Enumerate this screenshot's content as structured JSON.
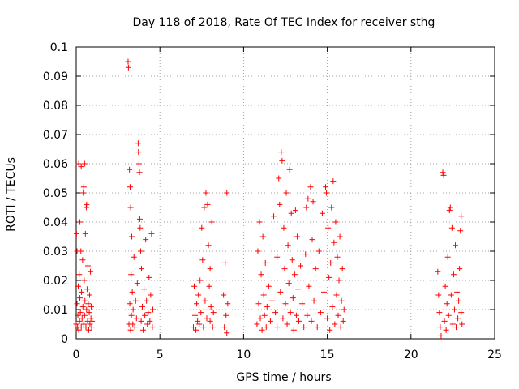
{
  "chart_data": {
    "type": "scatter",
    "title": "Day 118 of 2018, Rate Of TEC Index for receiver sthg",
    "xlabel": "GPS time / hours",
    "ylabel": "ROTI / TECUs",
    "xlim": [
      0,
      25
    ],
    "ylim": [
      0,
      0.1
    ],
    "grid": true,
    "marker": "+",
    "series_color": "#ff0000",
    "x_ticks": [
      0,
      5,
      10,
      15,
      20,
      25
    ],
    "y_ticks": [
      0,
      0.01,
      0.02,
      0.03,
      0.04,
      0.05,
      0.06,
      0.07,
      0.08,
      0.09,
      0.1
    ],
    "x_tick_labels": [
      "0",
      "5",
      "10",
      "15",
      "20",
      "25"
    ],
    "y_tick_labels": [
      "0",
      "0.01",
      "0.02",
      "0.03",
      "0.04",
      "0.05",
      "0.06",
      "0.07",
      "0.08",
      "0.09",
      "0.1"
    ],
    "series": [
      {
        "name": "ROTI",
        "points": [
          [
            0.0,
            0.005
          ],
          [
            0.02,
            0.036
          ],
          [
            0.05,
            0.03
          ],
          [
            0.05,
            0.012
          ],
          [
            0.08,
            0.004
          ],
          [
            0.1,
            0.008
          ],
          [
            0.12,
            0.018
          ],
          [
            0.15,
            0.06
          ],
          [
            0.15,
            0.003
          ],
          [
            0.18,
            0.022
          ],
          [
            0.2,
            0.006
          ],
          [
            0.22,
            0.04
          ],
          [
            0.22,
            0.014
          ],
          [
            0.25,
            0.009
          ],
          [
            0.28,
            0.03
          ],
          [
            0.3,
            0.059
          ],
          [
            0.3,
            0.004
          ],
          [
            0.32,
            0.016
          ],
          [
            0.35,
            0.007
          ],
          [
            0.38,
            0.027
          ],
          [
            0.4,
            0.011
          ],
          [
            0.42,
            0.05
          ],
          [
            0.45,
            0.052
          ],
          [
            0.45,
            0.005
          ],
          [
            0.48,
            0.02
          ],
          [
            0.5,
            0.06
          ],
          [
            0.5,
            0.008
          ],
          [
            0.52,
            0.013
          ],
          [
            0.55,
            0.036
          ],
          [
            0.58,
            0.004
          ],
          [
            0.6,
            0.045
          ],
          [
            0.62,
            0.046
          ],
          [
            0.62,
            0.01
          ],
          [
            0.65,
            0.017
          ],
          [
            0.68,
            0.006
          ],
          [
            0.7,
            0.025
          ],
          [
            0.72,
            0.012
          ],
          [
            0.75,
            0.003
          ],
          [
            0.78,
            0.009
          ],
          [
            0.8,
            0.015
          ],
          [
            0.82,
            0.005
          ],
          [
            0.85,
            0.023
          ],
          [
            0.88,
            0.007
          ],
          [
            0.9,
            0.011
          ],
          [
            0.92,
            0.004
          ],
          [
            0.95,
            0.006
          ],
          [
            3.1,
            0.095
          ],
          [
            3.12,
            0.093
          ],
          [
            3.15,
            0.005
          ],
          [
            3.18,
            0.058
          ],
          [
            3.2,
            0.012
          ],
          [
            3.22,
            0.052
          ],
          [
            3.25,
            0.045
          ],
          [
            3.25,
            0.003
          ],
          [
            3.28,
            0.022
          ],
          [
            3.3,
            0.008
          ],
          [
            3.32,
            0.035
          ],
          [
            3.35,
            0.016
          ],
          [
            3.38,
            0.005
          ],
          [
            3.4,
            0.01
          ],
          [
            3.45,
            0.028
          ],
          [
            3.5,
            0.004
          ],
          [
            3.55,
            0.013
          ],
          [
            3.6,
            0.007
          ],
          [
            3.65,
            0.019
          ],
          [
            3.7,
            0.067
          ],
          [
            3.72,
            0.064
          ],
          [
            3.75,
            0.06
          ],
          [
            3.78,
            0.057
          ],
          [
            3.8,
            0.041
          ],
          [
            3.82,
            0.038
          ],
          [
            3.85,
            0.03
          ],
          [
            3.88,
            0.006
          ],
          [
            3.9,
            0.024
          ],
          [
            3.95,
            0.011
          ],
          [
            4.0,
            0.003
          ],
          [
            4.05,
            0.017
          ],
          [
            4.1,
            0.008
          ],
          [
            4.15,
            0.034
          ],
          [
            4.2,
            0.013
          ],
          [
            4.25,
            0.005
          ],
          [
            4.3,
            0.009
          ],
          [
            4.35,
            0.021
          ],
          [
            4.4,
            0.006
          ],
          [
            4.45,
            0.015
          ],
          [
            4.5,
            0.036
          ],
          [
            4.55,
            0.004
          ],
          [
            4.58,
            0.01
          ],
          [
            7.0,
            0.004
          ],
          [
            7.05,
            0.018
          ],
          [
            7.1,
            0.008
          ],
          [
            7.15,
            0.003
          ],
          [
            7.2,
            0.012
          ],
          [
            7.25,
            0.006
          ],
          [
            7.3,
            0.015
          ],
          [
            7.35,
            0.005
          ],
          [
            7.4,
            0.02
          ],
          [
            7.45,
            0.009
          ],
          [
            7.5,
            0.038
          ],
          [
            7.55,
            0.027
          ],
          [
            7.6,
            0.004
          ],
          [
            7.65,
            0.045
          ],
          [
            7.7,
            0.013
          ],
          [
            7.75,
            0.05
          ],
          [
            7.8,
            0.007
          ],
          [
            7.85,
            0.046
          ],
          [
            7.9,
            0.032
          ],
          [
            7.95,
            0.018
          ],
          [
            8.0,
            0.024
          ],
          [
            8.0,
            0.006
          ],
          [
            8.05,
            0.011
          ],
          [
            8.1,
            0.04
          ],
          [
            8.15,
            0.004
          ],
          [
            8.2,
            0.009
          ],
          [
            8.8,
            0.015
          ],
          [
            8.85,
            0.004
          ],
          [
            8.9,
            0.026
          ],
          [
            8.95,
            0.008
          ],
          [
            9.0,
            0.05
          ],
          [
            9.0,
            0.002
          ],
          [
            9.05,
            0.012
          ],
          [
            10.8,
            0.005
          ],
          [
            10.85,
            0.03
          ],
          [
            10.9,
            0.012
          ],
          [
            10.95,
            0.04
          ],
          [
            11.0,
            0.007
          ],
          [
            11.05,
            0.022
          ],
          [
            11.1,
            0.003
          ],
          [
            11.15,
            0.035
          ],
          [
            11.2,
            0.015
          ],
          [
            11.25,
            0.008
          ],
          [
            11.3,
            0.026
          ],
          [
            11.35,
            0.004
          ],
          [
            11.4,
            0.011
          ],
          [
            11.5,
            0.018
          ],
          [
            11.6,
            0.006
          ],
          [
            11.7,
            0.013
          ],
          [
            11.8,
            0.042
          ],
          [
            11.9,
            0.009
          ],
          [
            12.0,
            0.028
          ],
          [
            12.0,
            0.004
          ],
          [
            12.1,
            0.055
          ],
          [
            12.15,
            0.046
          ],
          [
            12.2,
            0.016
          ],
          [
            12.25,
            0.064
          ],
          [
            12.3,
            0.061
          ],
          [
            12.35,
            0.007
          ],
          [
            12.4,
            0.038
          ],
          [
            12.45,
            0.024
          ],
          [
            12.5,
            0.012
          ],
          [
            12.55,
            0.05
          ],
          [
            12.6,
            0.005
          ],
          [
            12.65,
            0.032
          ],
          [
            12.7,
            0.019
          ],
          [
            12.75,
            0.058
          ],
          [
            12.8,
            0.009
          ],
          [
            12.85,
            0.043
          ],
          [
            12.9,
            0.027
          ],
          [
            12.95,
            0.014
          ],
          [
            13.0,
            0.003
          ],
          [
            13.05,
            0.022
          ],
          [
            13.1,
            0.044
          ],
          [
            13.15,
            0.008
          ],
          [
            13.2,
            0.035
          ],
          [
            13.25,
            0.017
          ],
          [
            13.3,
            0.006
          ],
          [
            13.4,
            0.025
          ],
          [
            13.5,
            0.012
          ],
          [
            13.6,
            0.004
          ],
          [
            13.7,
            0.029
          ],
          [
            13.75,
            0.045
          ],
          [
            13.8,
            0.008
          ],
          [
            13.85,
            0.048
          ],
          [
            13.9,
            0.018
          ],
          [
            14.0,
            0.052
          ],
          [
            14.05,
            0.006
          ],
          [
            14.1,
            0.034
          ],
          [
            14.15,
            0.047
          ],
          [
            14.2,
            0.013
          ],
          [
            14.3,
            0.024
          ],
          [
            14.4,
            0.004
          ],
          [
            14.5,
            0.03
          ],
          [
            14.6,
            0.009
          ],
          [
            14.7,
            0.043
          ],
          [
            14.8,
            0.016
          ],
          [
            14.9,
            0.052
          ],
          [
            14.95,
            0.05
          ],
          [
            15.0,
            0.007
          ],
          [
            15.05,
            0.038
          ],
          [
            15.1,
            0.021
          ],
          [
            15.15,
            0.003
          ],
          [
            15.2,
            0.026
          ],
          [
            15.25,
            0.045
          ],
          [
            15.3,
            0.011
          ],
          [
            15.35,
            0.054
          ],
          [
            15.4,
            0.033
          ],
          [
            15.45,
            0.005
          ],
          [
            15.5,
            0.04
          ],
          [
            15.55,
            0.015
          ],
          [
            15.6,
            0.028
          ],
          [
            15.65,
            0.008
          ],
          [
            15.7,
            0.02
          ],
          [
            15.75,
            0.035
          ],
          [
            15.8,
            0.004
          ],
          [
            15.85,
            0.013
          ],
          [
            15.9,
            0.024
          ],
          [
            15.95,
            0.006
          ],
          [
            16.0,
            0.01
          ],
          [
            21.6,
            0.023
          ],
          [
            21.65,
            0.015
          ],
          [
            21.7,
            0.009
          ],
          [
            21.75,
            0.004
          ],
          [
            21.8,
            0.001
          ],
          [
            21.9,
            0.057
          ],
          [
            21.95,
            0.056
          ],
          [
            22.0,
            0.006
          ],
          [
            22.05,
            0.018
          ],
          [
            22.1,
            0.003
          ],
          [
            22.15,
            0.012
          ],
          [
            22.2,
            0.028
          ],
          [
            22.25,
            0.008
          ],
          [
            22.3,
            0.044
          ],
          [
            22.35,
            0.045
          ],
          [
            22.4,
            0.015
          ],
          [
            22.45,
            0.038
          ],
          [
            22.5,
            0.005
          ],
          [
            22.55,
            0.022
          ],
          [
            22.6,
            0.01
          ],
          [
            22.65,
            0.032
          ],
          [
            22.7,
            0.004
          ],
          [
            22.75,
            0.016
          ],
          [
            22.8,
            0.007
          ],
          [
            22.85,
            0.013
          ],
          [
            22.9,
            0.024
          ],
          [
            22.95,
            0.037
          ],
          [
            23.0,
            0.042
          ],
          [
            23.0,
            0.009
          ],
          [
            23.05,
            0.005
          ]
        ]
      }
    ]
  }
}
